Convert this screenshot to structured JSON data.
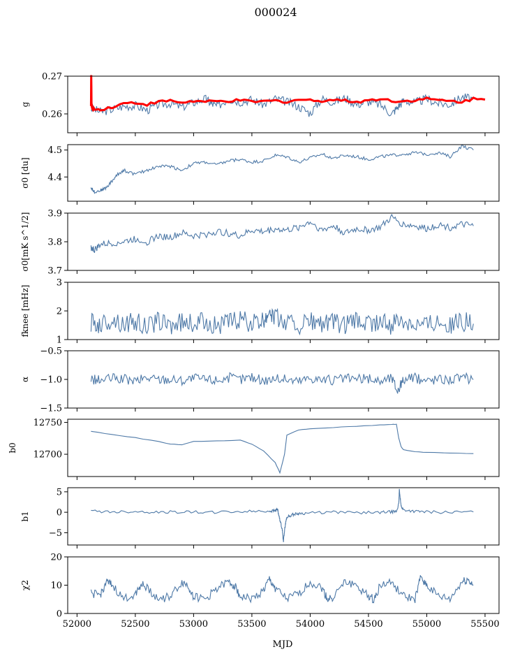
{
  "title": "000024",
  "xlabel": "MJD",
  "colors": {
    "series": "#4e79a7",
    "overlay": "#ff0000"
  },
  "chart_data": [
    {
      "type": "line",
      "ylabel": "g",
      "xlim": [
        51920,
        55620
      ],
      "ylim": [
        0.255,
        0.27
      ],
      "yticks": [
        "0.260",
        "0.270"
      ],
      "yticks_show": [
        "0.26",
        "0.27"
      ],
      "grid": false,
      "series": [
        {
          "x": [
            52120,
            52200,
            52300,
            52400,
            52500,
            52600,
            52700,
            52800,
            52900,
            53000,
            53100,
            53150,
            53200,
            53300,
            53400,
            53500,
            53600,
            53700,
            53800,
            53900,
            54000,
            54100,
            54200,
            54300,
            54400,
            54500,
            54600,
            54700,
            54750,
            54800,
            54900,
            55000,
            55100,
            55200,
            55300,
            55400
          ],
          "y": [
            0.2615,
            0.2605,
            0.2612,
            0.262,
            0.2622,
            0.261,
            0.2625,
            0.2628,
            0.2618,
            0.263,
            0.264,
            0.2628,
            0.262,
            0.264,
            0.2632,
            0.2638,
            0.2625,
            0.264,
            0.2632,
            0.262,
            0.2602,
            0.264,
            0.2632,
            0.2642,
            0.2625,
            0.2632,
            0.2625,
            0.26,
            0.2618,
            0.2635,
            0.263,
            0.264,
            0.2628,
            0.2625,
            0.2645,
            0.264
          ]
        },
        {
          "x": [
            52120,
            52122,
            52124,
            52130,
            52150,
            52200,
            52300,
            52400,
            52500,
            52600,
            52700,
            52800,
            52900,
            53000,
            53100,
            53200,
            53300,
            53400,
            53500,
            53600,
            53700,
            53800,
            53900,
            54000,
            54100,
            54200,
            54300,
            54400,
            54500,
            54600,
            54700,
            54800,
            54900,
            55000,
            55100,
            55200,
            55300,
            55400,
            55500
          ],
          "y": [
            0.262,
            0.27,
            0.2625,
            0.2615,
            0.2612,
            0.2612,
            0.2618,
            0.2628,
            0.263,
            0.2625,
            0.2632,
            0.2635,
            0.263,
            0.2634,
            0.2632,
            0.2633,
            0.2634,
            0.2636,
            0.2632,
            0.2633,
            0.2635,
            0.2632,
            0.2638,
            0.2636,
            0.2635,
            0.2638,
            0.2635,
            0.2632,
            0.2636,
            0.264,
            0.2635,
            0.2633,
            0.2637,
            0.264,
            0.2636,
            0.2634,
            0.2632,
            0.264,
            0.2638
          ]
        }
      ]
    },
    {
      "type": "line",
      "ylabel": "σ0 [du]",
      "xlim": [
        51920,
        55620
      ],
      "ylim": [
        4.31,
        4.52
      ],
      "yticks": [
        "4.4",
        "4.5"
      ],
      "grid": false,
      "series": [
        {
          "x": [
            52120,
            52150,
            52200,
            52250,
            52300,
            52350,
            52400,
            52500,
            52600,
            52700,
            52800,
            52900,
            53000,
            53100,
            53200,
            53300,
            53400,
            53500,
            53600,
            53700,
            53800,
            53900,
            54000,
            54100,
            54200,
            54300,
            54400,
            54500,
            54600,
            54700,
            54800,
            54900,
            55000,
            55100,
            55200,
            55300,
            55400
          ],
          "y": [
            4.36,
            4.345,
            4.35,
            4.36,
            4.385,
            4.41,
            4.425,
            4.41,
            4.425,
            4.44,
            4.44,
            4.425,
            4.45,
            4.455,
            4.445,
            4.46,
            4.465,
            4.455,
            4.46,
            4.48,
            4.475,
            4.455,
            4.47,
            4.485,
            4.47,
            4.48,
            4.475,
            4.465,
            4.475,
            4.48,
            4.485,
            4.49,
            4.485,
            4.49,
            4.475,
            4.515,
            4.5
          ]
        }
      ]
    },
    {
      "type": "line",
      "ylabel": "σ0[mK s^1/2]",
      "xlim": [
        51920,
        55620
      ],
      "ylim": [
        3.7,
        3.9
      ],
      "yticks": [
        "3.7",
        "3.8",
        "3.9"
      ],
      "grid": false,
      "series": [
        {
          "x": [
            52120,
            52150,
            52200,
            52300,
            52400,
            52500,
            52600,
            52700,
            52800,
            52900,
            53000,
            53100,
            53200,
            53300,
            53400,
            53500,
            53600,
            53700,
            53800,
            53900,
            54000,
            54100,
            54200,
            54300,
            54400,
            54500,
            54600,
            54700,
            54800,
            54900,
            55000,
            55100,
            55200,
            55300,
            55400
          ],
          "y": [
            3.78,
            3.77,
            3.79,
            3.795,
            3.8,
            3.81,
            3.8,
            3.82,
            3.815,
            3.83,
            3.82,
            3.825,
            3.835,
            3.83,
            3.82,
            3.84,
            3.835,
            3.845,
            3.84,
            3.85,
            3.87,
            3.84,
            3.855,
            3.83,
            3.845,
            3.84,
            3.85,
            3.885,
            3.86,
            3.855,
            3.845,
            3.86,
            3.85,
            3.86,
            3.855
          ]
        }
      ]
    },
    {
      "type": "line",
      "ylabel": "fknee [mHz]",
      "xlim": [
        51920,
        55620
      ],
      "ylim": [
        1,
        3
      ],
      "yticks": [
        "1",
        "2",
        "3"
      ],
      "grid": false,
      "series": [
        {
          "x": [
            52120,
            52200,
            52300,
            52400,
            52500,
            52600,
            52700,
            52800,
            52900,
            53000,
            53100,
            53200,
            53300,
            53400,
            53500,
            53600,
            53650,
            53700,
            53800,
            53900,
            54000,
            54100,
            54200,
            54300,
            54400,
            54500,
            54600,
            54700,
            54800,
            54900,
            55000,
            55100,
            55200,
            55300,
            55400
          ],
          "y": [
            1.6,
            1.5,
            1.7,
            1.55,
            1.6,
            1.45,
            1.65,
            1.5,
            1.6,
            1.55,
            1.65,
            1.5,
            1.6,
            1.7,
            1.55,
            1.6,
            2.1,
            1.75,
            1.6,
            1.5,
            1.65,
            1.55,
            1.6,
            1.5,
            1.65,
            1.55,
            1.6,
            1.5,
            1.7,
            1.6,
            1.55,
            1.7,
            1.5,
            1.65,
            1.55
          ]
        }
      ]
    },
    {
      "type": "line",
      "ylabel": "α",
      "xlim": [
        51920,
        55620
      ],
      "ylim": [
        -1.5,
        -0.5
      ],
      "yticks": [
        "−1.5",
        "−1.0",
        "−0.5"
      ],
      "grid": false,
      "series": [
        {
          "x": [
            52120,
            52200,
            52300,
            52400,
            52500,
            52600,
            52700,
            52800,
            52900,
            53000,
            53100,
            53200,
            53300,
            53400,
            53500,
            53600,
            53700,
            53800,
            53900,
            54000,
            54100,
            54200,
            54300,
            54400,
            54500,
            54600,
            54700,
            54750,
            54800,
            54900,
            55000,
            55100,
            55200,
            55300,
            55400
          ],
          "y": [
            -1.0,
            -1.02,
            -0.98,
            -1.0,
            -1.03,
            -0.97,
            -1.0,
            -0.99,
            -1.02,
            -0.98,
            -1.0,
            -1.01,
            -0.97,
            -1.0,
            -0.96,
            -1.02,
            -0.98,
            -1.0,
            -1.03,
            -0.97,
            -1.0,
            -1.02,
            -0.98,
            -1.0,
            -0.99,
            -1.03,
            -0.97,
            -1.2,
            -1.0,
            -0.98,
            -1.02,
            -0.99,
            -1.0,
            -0.97,
            -1.0
          ]
        }
      ]
    },
    {
      "type": "line",
      "ylabel": "b0",
      "xlim": [
        51920,
        55620
      ],
      "ylim": [
        12665,
        12755
      ],
      "yticks": [
        "12700",
        "12750"
      ],
      "grid": false,
      "series": [
        {
          "x": [
            52120,
            52300,
            52500,
            52700,
            52800,
            52900,
            53000,
            53200,
            53400,
            53500,
            53600,
            53700,
            53740,
            53760,
            53780,
            53800,
            53900,
            54000,
            54200,
            54400,
            54600,
            54700,
            54740,
            54760,
            54780,
            54800,
            54900,
            55000,
            55200,
            55400
          ],
          "y": [
            12736,
            12731,
            12726,
            12720,
            12716,
            12715,
            12720,
            12721,
            12722,
            12716,
            12705,
            12687,
            12671,
            12685,
            12700,
            12730,
            12738,
            12740,
            12742,
            12744,
            12746,
            12747,
            12747,
            12725,
            12712,
            12707,
            12704,
            12703,
            12702,
            12701
          ]
        }
      ]
    },
    {
      "type": "line",
      "ylabel": "b1",
      "xlim": [
        51920,
        55620
      ],
      "ylim": [
        -8,
        6
      ],
      "yticks": [
        "−5",
        "0",
        "5"
      ],
      "grid": false,
      "series": [
        {
          "x": [
            52120,
            52300,
            52500,
            52700,
            52900,
            53100,
            53300,
            53500,
            53650,
            53700,
            53720,
            53740,
            53760,
            53770,
            53780,
            53790,
            53800,
            53850,
            53900,
            54000,
            54200,
            54400,
            54600,
            54700,
            54740,
            54760,
            54765,
            54780,
            54800,
            54900,
            55000,
            55200,
            55400
          ],
          "y": [
            0.3,
            0.1,
            0.2,
            0.0,
            0.1,
            0.0,
            0.1,
            0.2,
            0.3,
            0.4,
            0.8,
            -2.0,
            -4.0,
            -7.2,
            -4.5,
            -2.5,
            -1.2,
            -0.6,
            -0.3,
            -0.2,
            0.0,
            -0.1,
            0.0,
            0.1,
            0.2,
            2.0,
            5.6,
            1.5,
            0.6,
            0.2,
            0.1,
            0.0,
            0.1
          ]
        }
      ]
    },
    {
      "type": "line",
      "ylabel": "χ2",
      "xlim": [
        51920,
        55620
      ],
      "ylim": [
        0,
        20
      ],
      "yticks": [
        "0",
        "10",
        "20"
      ],
      "xticks": [
        "52000",
        "52500",
        "53000",
        "53500",
        "54000",
        "54500",
        "55000",
        "55500"
      ],
      "grid": false,
      "series": [
        {
          "x": [
            52120,
            52200,
            52250,
            52300,
            52400,
            52500,
            52550,
            52600,
            52700,
            52800,
            52900,
            52950,
            53000,
            53100,
            53200,
            53300,
            53350,
            53400,
            53500,
            53600,
            53650,
            53700,
            53800,
            53900,
            54000,
            54100,
            54150,
            54200,
            54300,
            54400,
            54500,
            54550,
            54600,
            54700,
            54800,
            54900,
            54950,
            55000,
            55100,
            55200,
            55300,
            55350,
            55400
          ],
          "y": [
            7,
            6.5,
            11,
            10,
            5,
            7,
            10.5,
            9,
            5,
            6,
            11,
            10,
            6,
            5,
            9,
            11,
            10,
            6,
            5,
            8,
            12,
            9,
            5,
            7,
            11,
            9,
            5,
            6,
            11,
            10,
            6,
            5,
            10,
            11,
            6,
            5,
            13,
            10,
            6,
            5,
            11,
            12,
            10
          ]
        }
      ]
    }
  ]
}
